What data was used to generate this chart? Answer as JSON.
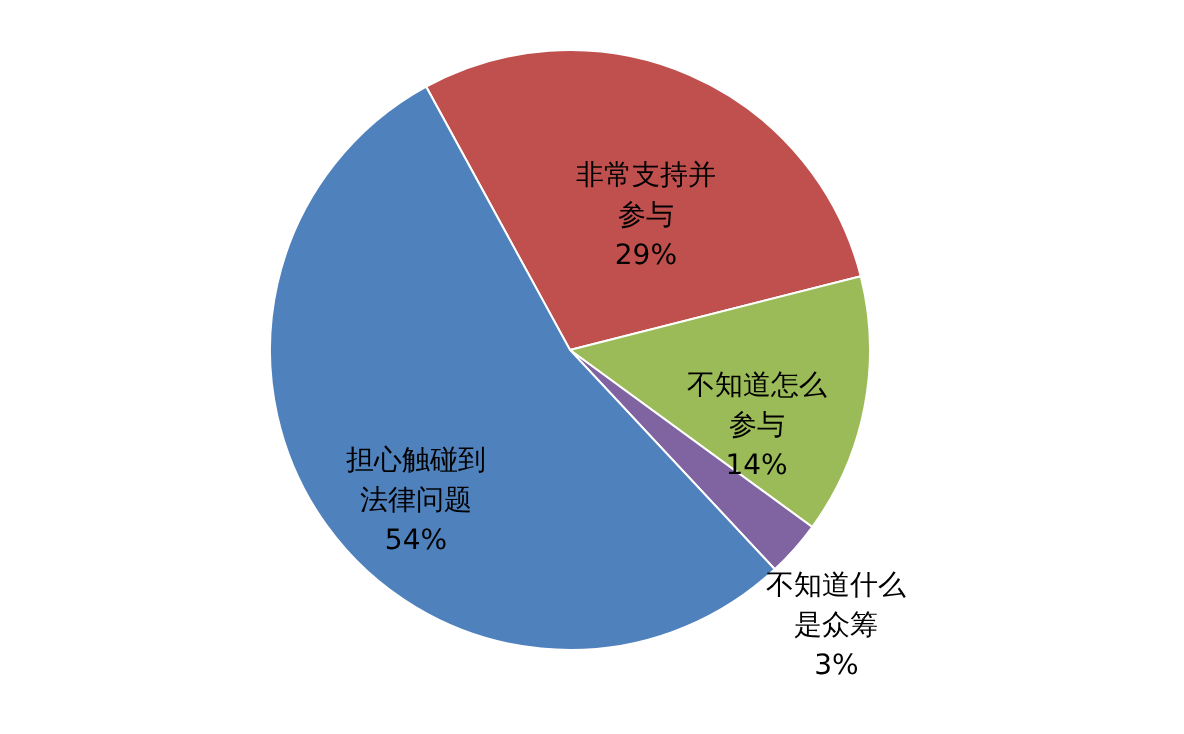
{
  "chart_data": {
    "type": "pie",
    "categories": [
      "非常支持并参与",
      "不知道怎么参与",
      "不知道什么是众筹",
      "担心触碰到法律问题"
    ],
    "values": [
      29,
      14,
      3,
      54
    ],
    "colors": [
      "#c0504d",
      "#9bbb59",
      "#8064a2",
      "#4f81bd"
    ],
    "value_labels": [
      "29%",
      "14%",
      "3%",
      "54%"
    ],
    "legend": false
  }
}
